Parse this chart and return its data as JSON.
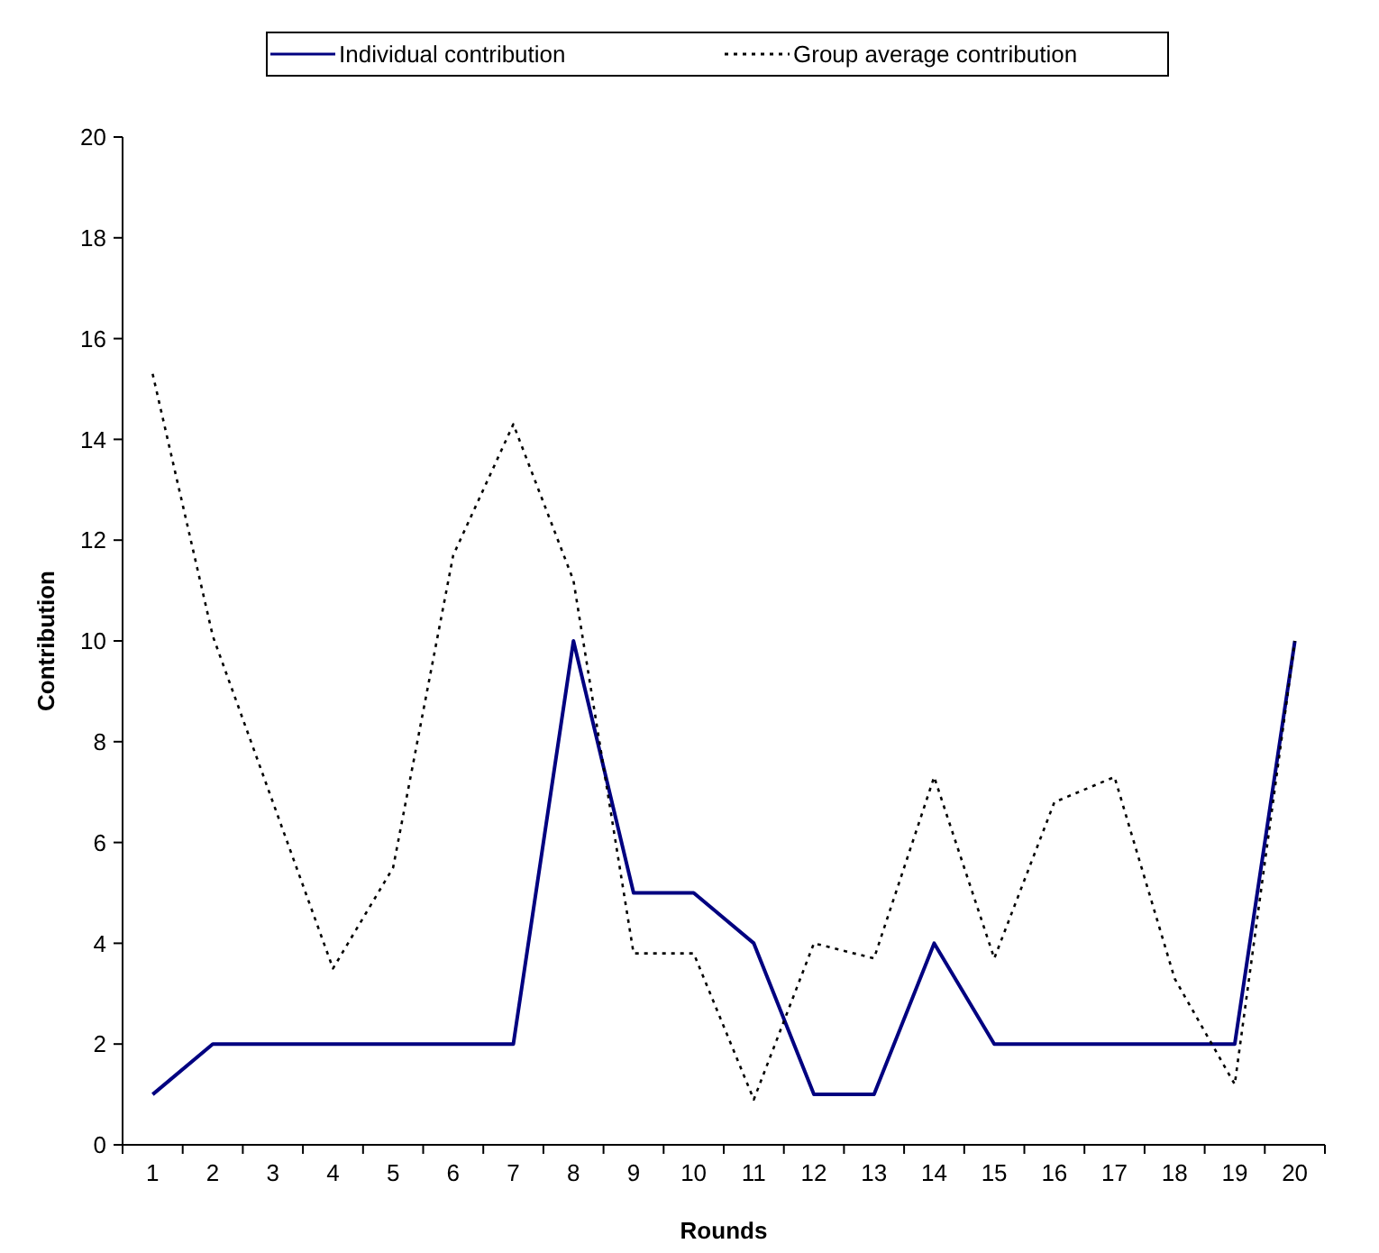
{
  "chart_data": {
    "type": "line",
    "xlabel": "Rounds",
    "ylabel": "Contribution",
    "categories": [
      "1",
      "2",
      "3",
      "4",
      "5",
      "6",
      "7",
      "8",
      "9",
      "10",
      "11",
      "12",
      "13",
      "14",
      "15",
      "16",
      "17",
      "18",
      "19",
      "20"
    ],
    "series": [
      {
        "name": "Individual contribution",
        "color": "#000080",
        "line_style": "solid",
        "values": [
          1,
          2,
          2,
          2,
          2,
          2,
          2,
          10,
          5,
          5,
          4,
          1,
          1,
          4,
          2,
          2,
          2,
          2,
          2,
          10
        ]
      },
      {
        "name": "Group average contribution",
        "color": "#000000",
        "line_style": "dotted",
        "values": [
          15.3,
          10.1,
          6.8,
          3.5,
          5.5,
          11.7,
          14.3,
          11.2,
          3.8,
          3.8,
          0.9,
          4.0,
          3.7,
          7.3,
          3.7,
          6.8,
          7.3,
          3.3,
          1.2,
          10
        ]
      }
    ],
    "ylim": [
      0,
      20
    ],
    "yticks": [
      0,
      2,
      4,
      6,
      8,
      10,
      12,
      14,
      16,
      18,
      20
    ],
    "grid": false,
    "legend": "top",
    "marker": "none"
  }
}
